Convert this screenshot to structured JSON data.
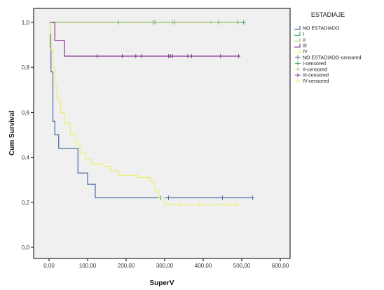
{
  "chart_data": {
    "type": "line",
    "subtype": "kaplan-meier-step",
    "xlabel": "SuperV",
    "ylabel": "Cum Survival",
    "xlim": [
      0,
      600
    ],
    "ylim": [
      0,
      1
    ],
    "x_ticks": [
      "0,00",
      "100,00",
      "200,00",
      "300,00",
      "400,00",
      "500,00",
      "600,00"
    ],
    "y_ticks": [
      "0,0",
      "0,2",
      "0,4",
      "0,6",
      "0,8",
      "1,0"
    ],
    "x_tick_values": [
      0,
      100,
      200,
      300,
      400,
      500,
      600
    ],
    "y_tick_values": [
      0,
      0.2,
      0.4,
      0.6,
      0.8,
      1.0
    ],
    "grid": false,
    "legend": {
      "title": "ESTADIAJE",
      "position": "right",
      "entries": [
        {
          "label": "NO ESTADIADO",
          "color": "#4a6aa6",
          "kind": "line"
        },
        {
          "label": "I",
          "color": "#3aa66a",
          "kind": "line"
        },
        {
          "label": "II",
          "color": "#b5c86a",
          "kind": "line"
        },
        {
          "label": "III",
          "color": "#8a3a96",
          "kind": "line"
        },
        {
          "label": "IV",
          "color": "#f0ee70",
          "kind": "line"
        },
        {
          "label": "NO ESTADIADO-censored",
          "color": "#4a6aa6",
          "kind": "censor"
        },
        {
          "label": "I-censored",
          "color": "#3aa66a",
          "kind": "censor"
        },
        {
          "label": "II-censored",
          "color": "#b5c86a",
          "kind": "censor"
        },
        {
          "label": "III-censored",
          "color": "#8a3a96",
          "kind": "censor"
        },
        {
          "label": "IV-censored",
          "color": "#f0ee70",
          "kind": "censor"
        }
      ]
    },
    "series": [
      {
        "name": "NO ESTADIADO",
        "color": "#4a6aa6",
        "steps": [
          [
            0,
            1.0
          ],
          [
            3,
            0.89
          ],
          [
            5,
            0.78
          ],
          [
            10,
            0.56
          ],
          [
            15,
            0.5
          ],
          [
            25,
            0.44
          ],
          [
            75,
            0.33
          ],
          [
            100,
            0.28
          ],
          [
            120,
            0.22
          ],
          [
            530,
            0.22
          ]
        ],
        "censored": [
          [
            290,
            0.22
          ],
          [
            310,
            0.22
          ],
          [
            450,
            0.22
          ],
          [
            528,
            0.22
          ]
        ]
      },
      {
        "name": "I",
        "color": "#3aa66a",
        "steps": [
          [
            0,
            1.0
          ],
          [
            510,
            1.0
          ]
        ],
        "censored": [
          [
            180,
            1.0
          ],
          [
            270,
            1.0
          ],
          [
            275,
            1.0
          ],
          [
            325,
            1.0
          ],
          [
            440,
            1.0
          ],
          [
            490,
            1.0
          ],
          [
            505,
            1.0
          ]
        ]
      },
      {
        "name": "II",
        "color": "#b5c86a",
        "steps": [
          [
            0,
            1.0
          ],
          [
            500,
            1.0
          ]
        ],
        "censored": [
          [
            320,
            1.0
          ],
          [
            420,
            1.0
          ]
        ]
      },
      {
        "name": "III",
        "color": "#8a3a96",
        "steps": [
          [
            0,
            1.0
          ],
          [
            15,
            0.92
          ],
          [
            40,
            0.85
          ],
          [
            495,
            0.85
          ]
        ],
        "censored": [
          [
            125,
            0.85
          ],
          [
            190,
            0.85
          ],
          [
            225,
            0.85
          ],
          [
            240,
            0.85
          ],
          [
            310,
            0.85
          ],
          [
            315,
            0.85
          ],
          [
            320,
            0.85
          ],
          [
            360,
            0.85
          ],
          [
            370,
            0.85
          ],
          [
            445,
            0.85
          ],
          [
            492,
            0.85
          ]
        ]
      },
      {
        "name": "IV",
        "color": "#f0ee70",
        "steps": [
          [
            0,
            1.0
          ],
          [
            3,
            0.95
          ],
          [
            6,
            0.88
          ],
          [
            10,
            0.8
          ],
          [
            15,
            0.72
          ],
          [
            20,
            0.66
          ],
          [
            30,
            0.6
          ],
          [
            40,
            0.55
          ],
          [
            55,
            0.5
          ],
          [
            70,
            0.46
          ],
          [
            80,
            0.42
          ],
          [
            95,
            0.39
          ],
          [
            110,
            0.37
          ],
          [
            140,
            0.36
          ],
          [
            160,
            0.34
          ],
          [
            180,
            0.32
          ],
          [
            230,
            0.31
          ],
          [
            265,
            0.29
          ],
          [
            275,
            0.25
          ],
          [
            285,
            0.22
          ],
          [
            300,
            0.19
          ],
          [
            500,
            0.19
          ]
        ],
        "censored": [
          [
            255,
            0.31
          ],
          [
            340,
            0.19
          ],
          [
            390,
            0.19
          ],
          [
            470,
            0.19
          ],
          [
            485,
            0.19
          ]
        ]
      }
    ]
  }
}
